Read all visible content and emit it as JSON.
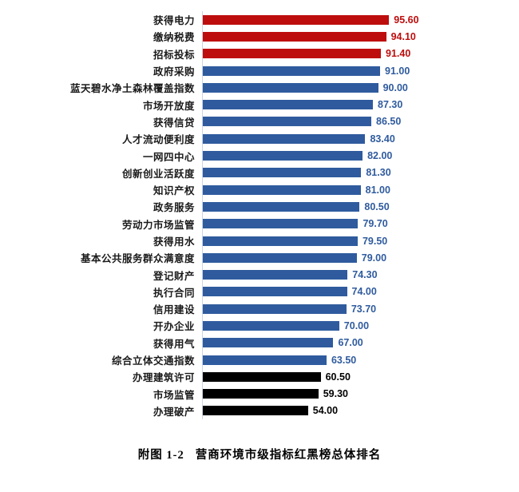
{
  "caption": {
    "prefix": "附图 1-2",
    "title": "营商环境市级指标红黑榜总体排名"
  },
  "colors": {
    "red": "#be0d0d",
    "blue": "#2f5b9e",
    "black": "#000000",
    "red_text": "#be0d0d",
    "blue_text": "#2f5b9e",
    "black_text": "#000000",
    "axis_line": "#ccd5e2",
    "category_text": "#1a1a1a",
    "background": "#ffffff"
  },
  "chart_data": {
    "type": "bar",
    "orientation": "horizontal",
    "title": "附图 1-2 营商环境市级指标红黑榜总体排名",
    "xlabel": "",
    "ylabel": "",
    "xlim": [
      0,
      100
    ],
    "grid": false,
    "legend": false,
    "data_labels": true,
    "value_format": "0.00",
    "categories": [
      "获得电力",
      "缴纳税费",
      "招标投标",
      "政府采购",
      "蓝天碧水净土森林覆盖指数",
      "市场开放度",
      "获得信贷",
      "人才流动便利度",
      "一网四中心",
      "创新创业活跃度",
      "知识产权",
      "政务服务",
      "劳动力市场监管",
      "获得用水",
      "基本公共服务群众满意度",
      "登记财产",
      "执行合同",
      "信用建设",
      "开办企业",
      "获得用气",
      "综合立体交通指数",
      "办理建筑许可",
      "市场监管",
      "办理破产"
    ],
    "values": [
      95.6,
      94.1,
      91.4,
      91.0,
      90.0,
      87.3,
      86.5,
      83.4,
      82.0,
      81.3,
      81.0,
      80.5,
      79.7,
      79.5,
      79.0,
      74.3,
      74.0,
      73.7,
      70.0,
      67.0,
      63.5,
      60.5,
      59.3,
      54.0
    ],
    "value_labels": [
      "95.60",
      "94.10",
      "91.40",
      "91.00",
      "90.00",
      "87.30",
      "86.50",
      "83.40",
      "82.00",
      "81.30",
      "81.00",
      "80.50",
      "79.70",
      "79.50",
      "79.00",
      "74.30",
      "74.00",
      "73.70",
      "70.00",
      "67.00",
      "63.50",
      "60.50",
      "59.30",
      "54.00"
    ],
    "groups": [
      "red",
      "red",
      "red",
      "blue",
      "blue",
      "blue",
      "blue",
      "blue",
      "blue",
      "blue",
      "blue",
      "blue",
      "blue",
      "blue",
      "blue",
      "blue",
      "blue",
      "blue",
      "blue",
      "blue",
      "blue",
      "black",
      "black",
      "black"
    ]
  }
}
